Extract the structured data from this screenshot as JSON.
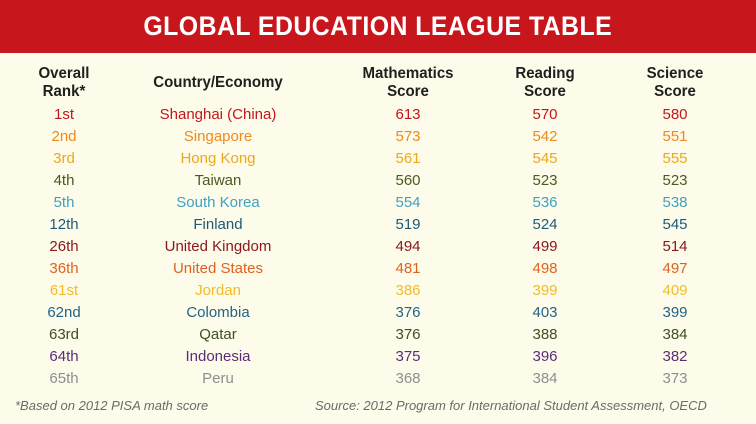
{
  "title": "GLOBAL EDUCATION LEAGUE TABLE",
  "headers": {
    "rank_line1": "Overall",
    "rank_line2": "Rank*",
    "country": "Country/Economy",
    "math_line1": "Mathematics",
    "math_line2": "Score",
    "reading_line1": "Reading",
    "reading_line2": "Score",
    "science_line1": "Science",
    "science_line2": "Score"
  },
  "rows": [
    {
      "rank": "1st",
      "country": "Shanghai (China)",
      "math": "613",
      "reading": "570",
      "science": "580",
      "color": "#c3161c"
    },
    {
      "rank": "2nd",
      "country": "Singapore",
      "math": "573",
      "reading": "542",
      "science": "551",
      "color": "#ef8a1e"
    },
    {
      "rank": "3rd",
      "country": "Hong Kong",
      "math": "561",
      "reading": "545",
      "science": "555",
      "color": "#eda71b"
    },
    {
      "rank": "4th",
      "country": "Taiwan",
      "math": "560",
      "reading": "523",
      "science": "523",
      "color": "#4c5a22"
    },
    {
      "rank": "5th",
      "country": "South Korea",
      "math": "554",
      "reading": "536",
      "science": "538",
      "color": "#3fa1c1"
    },
    {
      "rank": "12th",
      "country": "Finland",
      "math": "519",
      "reading": "524",
      "science": "545",
      "color": "#1d5a7a"
    },
    {
      "rank": "26th",
      "country": "United Kingdom",
      "math": "494",
      "reading": "499",
      "science": "514",
      "color": "#8b1820"
    },
    {
      "rank": "36th",
      "country": "United States",
      "math": "481",
      "reading": "498",
      "science": "497",
      "color": "#e0621f"
    },
    {
      "rank": "61st",
      "country": "Jordan",
      "math": "386",
      "reading": "399",
      "science": "409",
      "color": "#f2bc2a"
    },
    {
      "rank": "62nd",
      "country": "Colombia",
      "math": "376",
      "reading": "403",
      "science": "399",
      "color": "#23648a"
    },
    {
      "rank": "63rd",
      "country": "Qatar",
      "math": "376",
      "reading": "388",
      "science": "384",
      "color": "#404f24"
    },
    {
      "rank": "64th",
      "country": "Indonesia",
      "math": "375",
      "reading": "396",
      "science": "382",
      "color": "#5b2d78"
    },
    {
      "rank": "65th",
      "country": "Peru",
      "math": "368",
      "reading": "384",
      "science": "373",
      "color": "#8f8f8f"
    }
  ],
  "footnote": "*Based on 2012 PISA math score",
  "source": "Source: 2012 Program for International Student Assessment, OECD"
}
